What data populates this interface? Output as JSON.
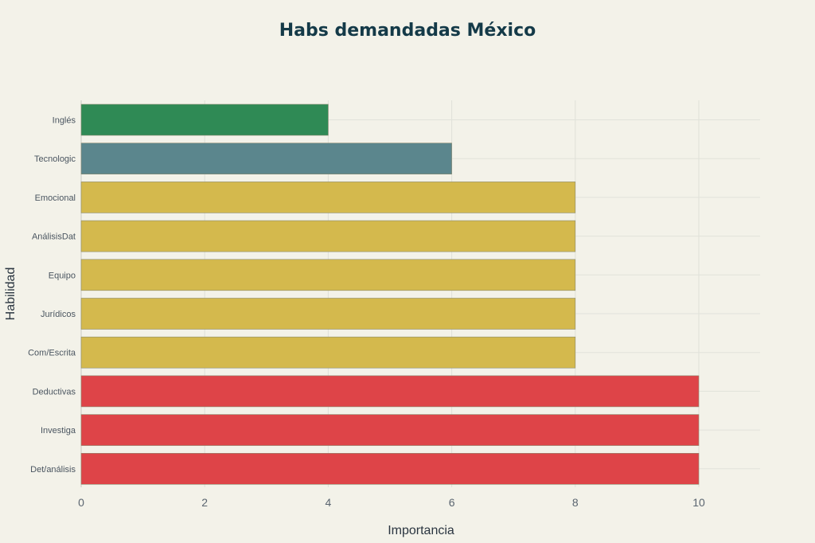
{
  "chart_data": {
    "type": "bar",
    "orientation": "horizontal",
    "title": "Habs demandadas México",
    "xlabel": "Importancia",
    "ylabel": "Habilidad",
    "xlim": [
      0,
      11
    ],
    "xticks": [
      0,
      2,
      4,
      6,
      8,
      10
    ],
    "grid": true,
    "legend": "none",
    "categories": [
      "Inglés",
      "Tecnologic",
      "Emocional",
      "AnálisisDat",
      "Equipo",
      "Jurídicos",
      "Com/Escrita",
      "Deductivas",
      "Investiga",
      "Det/análisis"
    ],
    "values": [
      4,
      6,
      8,
      8,
      8,
      8,
      8,
      10,
      10,
      10
    ],
    "colors": [
      "#2f8a55",
      "#5b868d",
      "#d4b94d",
      "#d4b94d",
      "#d4b94d",
      "#d4b94d",
      "#d4b94d",
      "#de4448",
      "#de4448",
      "#de4448"
    ]
  }
}
